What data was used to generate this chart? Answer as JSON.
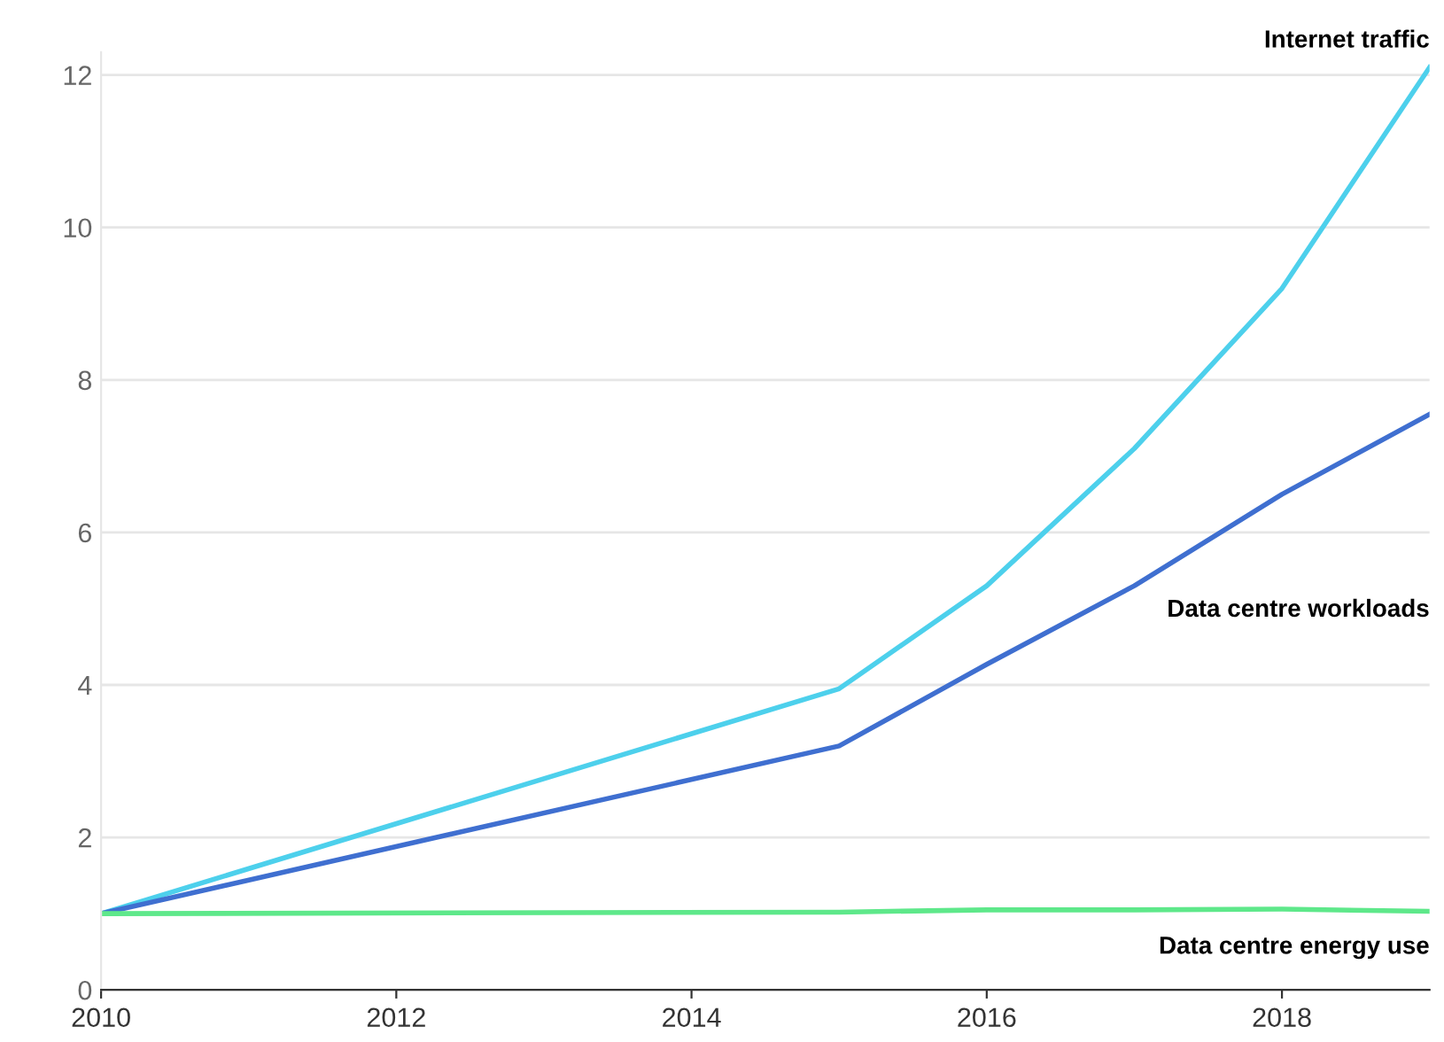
{
  "chart_data": {
    "type": "line",
    "x": [
      2010,
      2015,
      2016,
      2017,
      2018,
      2019
    ],
    "series": [
      {
        "name": "Internet traffic",
        "color": "#4dd0ec",
        "values": [
          1,
          3.95,
          5.3,
          7.1,
          9.2,
          12.1
        ]
      },
      {
        "name": "Data centre workloads",
        "color": "#3f6fd0",
        "values": [
          1,
          3.2,
          4.27,
          5.3,
          6.5,
          7.55
        ]
      },
      {
        "name": "Data centre energy use",
        "color": "#5ee88a",
        "values": [
          1,
          1.02,
          1.05,
          1.05,
          1.06,
          1.03
        ]
      }
    ],
    "xlim": [
      2010,
      2019
    ],
    "xticks": [
      2010,
      2012,
      2014,
      2016,
      2018
    ],
    "ylim": [
      0,
      12.3
    ],
    "yticks": [
      0,
      2,
      4,
      6,
      8,
      10,
      12
    ],
    "grid": "y",
    "legend": false,
    "marker": "none",
    "line_style": "solid"
  }
}
